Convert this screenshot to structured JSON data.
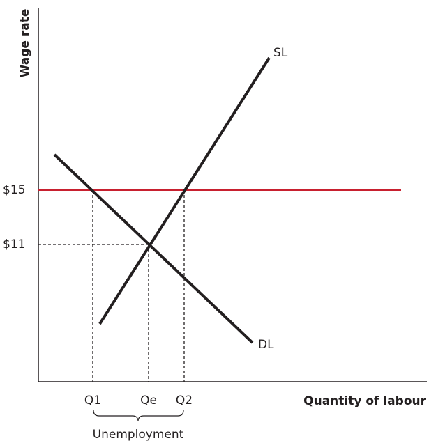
{
  "axes": {
    "y_label": "Wage rate",
    "x_label": "Quantity of labour"
  },
  "wages": {
    "minimum": "$15",
    "equilibrium": "$11"
  },
  "curves": {
    "supply": "SL",
    "demand": "DL"
  },
  "quantities": {
    "q1": "Q1",
    "qe": "Qe",
    "q2": "Q2"
  },
  "annotation": "Unemployment"
}
